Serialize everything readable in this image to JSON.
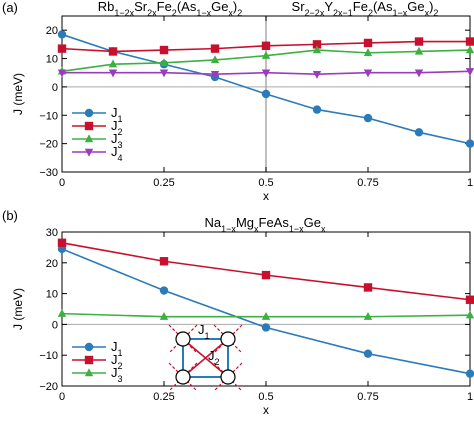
{
  "colors": {
    "J1": "#2b7bba",
    "J2": "#c8102e",
    "J3": "#3cb043",
    "J4": "#9a3dbd",
    "zero_line": "#aaaaaa",
    "divider": "#aaaaaa"
  },
  "chart_data": [
    {
      "panel": "(a)",
      "type": "line",
      "titles": [
        {
          "base": "Rb",
          "parts": [
            [
              "1−2x",
              "sub"
            ],
            [
              "Sr",
              ""
            ],
            [
              "2x",
              "sub"
            ],
            [
              "Fe",
              ""
            ],
            [
              "2",
              "sub"
            ],
            [
              "(As",
              ""
            ],
            [
              "1−x",
              "sub"
            ],
            [
              "Ge",
              ""
            ],
            [
              "x",
              "sub"
            ],
            [
              ")",
              ""
            ],
            [
              "2",
              "sub"
            ]
          ]
        },
        {
          "base": "Sr",
          "parts": [
            [
              "2−2x",
              "sub"
            ],
            [
              "Y",
              ""
            ],
            [
              "2x−1",
              "sub"
            ],
            [
              "Fe",
              ""
            ],
            [
              "2",
              "sub"
            ],
            [
              "(As",
              ""
            ],
            [
              "1−x",
              "sub"
            ],
            [
              "Ge",
              ""
            ],
            [
              "x",
              "sub"
            ],
            [
              ")",
              ""
            ],
            [
              "2",
              "sub"
            ]
          ]
        }
      ],
      "xlabel": "x",
      "ylabel": "J (meV)",
      "xlim": [
        0,
        1
      ],
      "ylim": [
        -30,
        25
      ],
      "xticks": [
        "0",
        "0.25",
        "0.5",
        "0.75",
        "1"
      ],
      "xtick_values": [
        0,
        0.25,
        0.5,
        0.75,
        1
      ],
      "yticks": [
        "−30",
        "−20",
        "−10",
        "0",
        "10",
        "20"
      ],
      "ytick_values": [
        -30,
        -20,
        -10,
        0,
        10,
        20
      ],
      "vline_x": 0.5,
      "legend_position": "lower-left",
      "series": [
        {
          "name": "J",
          "sub": "1",
          "key": "J1",
          "marker": "circle",
          "x": [
            0,
            0.125,
            0.25,
            0.375,
            0.5,
            0.625,
            0.75,
            0.875,
            1
          ],
          "y": [
            18.5,
            12.5,
            8,
            3.5,
            -2.5,
            -8,
            -11,
            -16,
            -20
          ]
        },
        {
          "name": "J",
          "sub": "2",
          "key": "J2",
          "marker": "square",
          "x": [
            0,
            0.125,
            0.25,
            0.375,
            0.5,
            0.625,
            0.75,
            0.875,
            1
          ],
          "y": [
            13.5,
            12.5,
            13,
            13.5,
            14.5,
            15,
            15.5,
            16,
            16
          ]
        },
        {
          "name": "J",
          "sub": "3",
          "key": "J3",
          "marker": "triangle-up",
          "x": [
            0,
            0.125,
            0.25,
            0.375,
            0.5,
            0.625,
            0.75,
            0.875,
            1
          ],
          "y": [
            5.5,
            8,
            8.5,
            9.5,
            11,
            13,
            12,
            12.5,
            13
          ]
        },
        {
          "name": "J",
          "sub": "4",
          "key": "J4",
          "marker": "triangle-down",
          "x": [
            0,
            0.125,
            0.25,
            0.375,
            0.5,
            0.625,
            0.75,
            0.875,
            1
          ],
          "y": [
            5,
            5,
            5,
            4.5,
            5,
            4.5,
            5,
            5,
            5.5
          ]
        }
      ]
    },
    {
      "panel": "(b)",
      "type": "line",
      "titles": [
        {
          "base": "Na",
          "parts": [
            [
              "1−x",
              "sub"
            ],
            [
              "Mg",
              ""
            ],
            [
              "x",
              "sub"
            ],
            [
              "FeAs",
              ""
            ],
            [
              "1−x",
              "sub"
            ],
            [
              "Ge",
              ""
            ],
            [
              "x",
              "sub"
            ]
          ]
        }
      ],
      "xlabel": "x",
      "ylabel": "J (meV)",
      "xlim": [
        0,
        1
      ],
      "ylim": [
        -20,
        30
      ],
      "xticks": [
        "0",
        "0.25",
        "0.5",
        "0.75",
        "1"
      ],
      "xtick_values": [
        0,
        0.25,
        0.5,
        0.75,
        1
      ],
      "yticks": [
        "−20",
        "−10",
        "0",
        "10",
        "20",
        "30"
      ],
      "ytick_values": [
        -20,
        -10,
        0,
        10,
        20,
        30
      ],
      "legend_position": "lower-left",
      "inset": {
        "labels": [
          {
            "name": "J",
            "sub": "1"
          },
          {
            "name": "J",
            "sub": "2"
          }
        ]
      },
      "series": [
        {
          "name": "J",
          "sub": "1",
          "key": "J1",
          "marker": "circle",
          "x": [
            0,
            0.25,
            0.5,
            0.75,
            1
          ],
          "y": [
            24.5,
            11,
            -1,
            -9.5,
            -16
          ]
        },
        {
          "name": "J",
          "sub": "2",
          "key": "J2",
          "marker": "square",
          "x": [
            0,
            0.25,
            0.5,
            0.75,
            1
          ],
          "y": [
            26.5,
            20.5,
            16,
            12,
            8
          ]
        },
        {
          "name": "J",
          "sub": "3",
          "key": "J3",
          "marker": "triangle-up",
          "x": [
            0,
            0.25,
            0.5,
            0.75,
            1
          ],
          "y": [
            3.5,
            2.5,
            2.5,
            2.5,
            3
          ]
        }
      ]
    }
  ]
}
